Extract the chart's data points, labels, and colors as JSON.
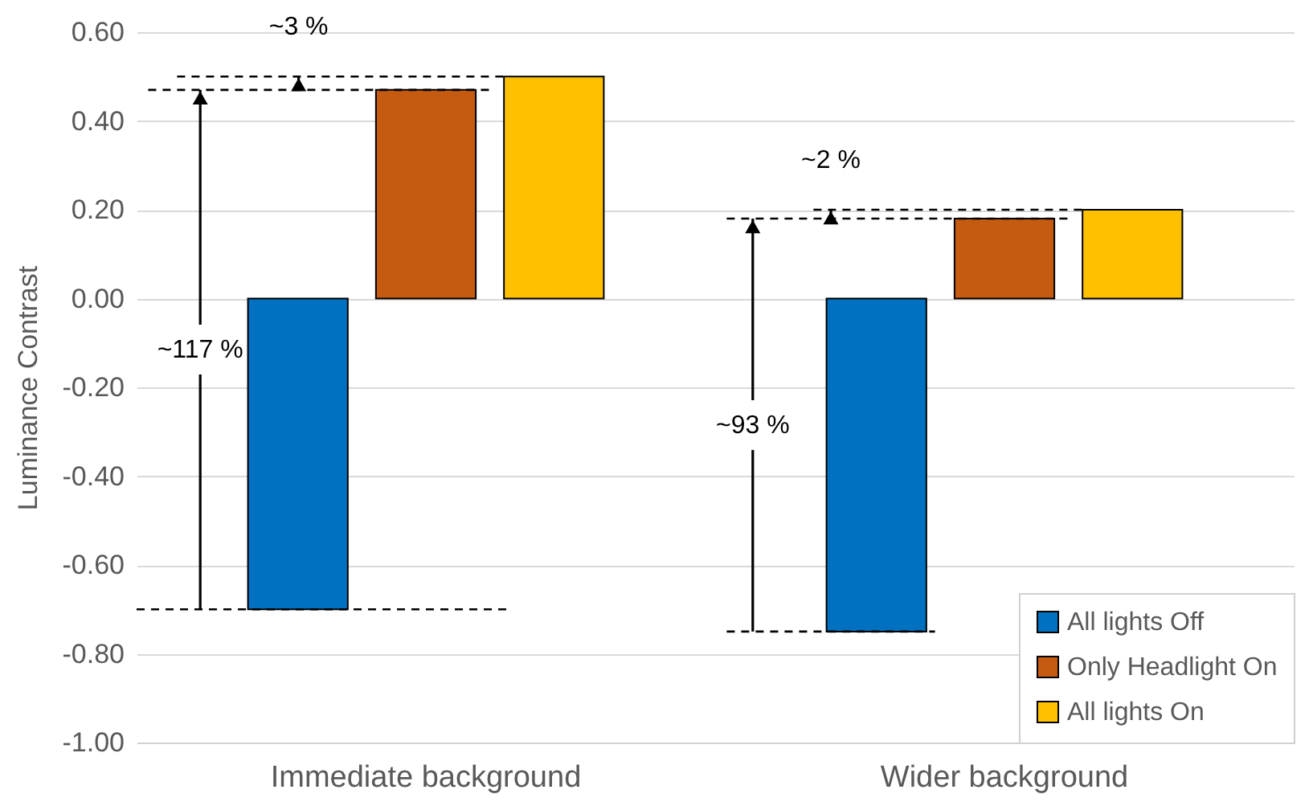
{
  "chart_data": {
    "type": "bar",
    "ylabel": "Luminance Contrast",
    "categories": [
      "Immediate background",
      "Wider background"
    ],
    "series": [
      {
        "name": "All lights Off",
        "color": "#0070c0",
        "values": [
          -0.7,
          -0.75
        ]
      },
      {
        "name": "Only Headlight On",
        "color": "#c55a11",
        "values": [
          0.47,
          0.18
        ]
      },
      {
        "name": "All lights On",
        "color": "#ffc000",
        "values": [
          0.5,
          0.2
        ]
      }
    ],
    "ylim": [
      -1.0,
      0.6
    ],
    "yticks": [
      {
        "value": -1,
        "label": "-1.00"
      },
      {
        "value": -0.8,
        "label": "-0.80"
      },
      {
        "value": -0.6,
        "label": "-0.60"
      },
      {
        "value": -0.4,
        "label": "-0.40"
      },
      {
        "value": -0.2,
        "label": "-0.20"
      },
      {
        "value": 0,
        "label": "0.00"
      },
      {
        "value": 0.2,
        "label": "0.20"
      },
      {
        "value": 0.4,
        "label": "0.40"
      },
      {
        "value": 0.6,
        "label": "0.60"
      }
    ],
    "grid": "y",
    "legend": "bottom right",
    "annotations": [
      "~117 %",
      "~3 %",
      "~93 %",
      "~2 %"
    ]
  }
}
